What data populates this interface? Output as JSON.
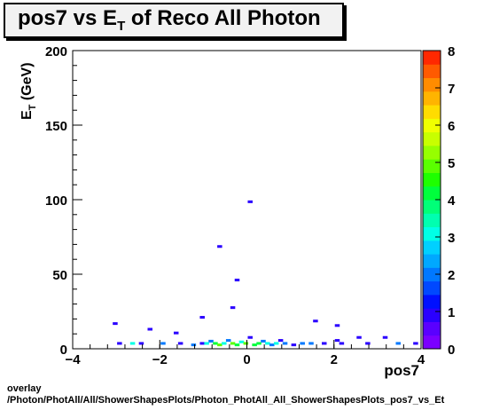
{
  "chart_data": {
    "type": "heatmap",
    "title": "pos7 vs E",
    "title_subscript": "T",
    "title_suffix": " of Reco All Photon",
    "xlabel": "pos7",
    "ylabel": "E",
    "ylabel_subscript": "T",
    "ylabel_suffix": " (GeV)",
    "xlim": [
      -4,
      4
    ],
    "ylim": [
      0,
      200
    ],
    "x_ticks": [
      "−4",
      "−2",
      "0",
      "2",
      "4"
    ],
    "y_ticks": [
      "0",
      "50",
      "100",
      "150",
      "200"
    ],
    "z_range": [
      0,
      8
    ],
    "z_ticks": [
      "0",
      "1",
      "2",
      "3",
      "4",
      "5",
      "6",
      "7",
      "8"
    ],
    "palette": [
      "#7b00ff",
      "#5a00ff",
      "#2a00ff",
      "#0010ff",
      "#0048ff",
      "#0078ff",
      "#00a8ff",
      "#00d0ff",
      "#00ffe6",
      "#00ffb0",
      "#00ff78",
      "#00ff3c",
      "#1eff00",
      "#5aff00",
      "#96ff00",
      "#c8ff00",
      "#f0ff00",
      "#ffdc00",
      "#ffb400",
      "#ff8c00",
      "#ff5a00",
      "#ff2800"
    ],
    "cells": [
      {
        "x": -3.0,
        "y": 15.8,
        "z": 1
      },
      {
        "x": -2.9,
        "y": 2.5,
        "z": 1
      },
      {
        "x": -2.2,
        "y": 12.0,
        "z": 1
      },
      {
        "x": -2.6,
        "y": 2.5,
        "z": 3
      },
      {
        "x": -2.4,
        "y": 2.5,
        "z": 1
      },
      {
        "x": -1.9,
        "y": 2.5,
        "z": 2
      },
      {
        "x": -1.6,
        "y": 9.5,
        "z": 1
      },
      {
        "x": -1.5,
        "y": 2.5,
        "z": 1
      },
      {
        "x": -1.2,
        "y": 1.5,
        "z": 2
      },
      {
        "x": -1.0,
        "y": 2.5,
        "z": 1
      },
      {
        "x": -1.0,
        "y": 20.0,
        "z": 1
      },
      {
        "x": -0.9,
        "y": 2.5,
        "z": 3
      },
      {
        "x": -0.8,
        "y": 4.0,
        "z": 2
      },
      {
        "x": -0.7,
        "y": 2.5,
        "z": 4
      },
      {
        "x": -0.6,
        "y": 1.5,
        "z": 5
      },
      {
        "x": -0.6,
        "y": 67.5,
        "z": 1
      },
      {
        "x": -0.5,
        "y": 2.5,
        "z": 3
      },
      {
        "x": -0.4,
        "y": 4.5,
        "z": 2
      },
      {
        "x": -0.3,
        "y": 2.5,
        "z": 5
      },
      {
        "x": -0.3,
        "y": 26.5,
        "z": 1
      },
      {
        "x": -0.2,
        "y": 45.0,
        "z": 1
      },
      {
        "x": -0.2,
        "y": 1.5,
        "z": 4
      },
      {
        "x": -0.1,
        "y": 3.5,
        "z": 3
      },
      {
        "x": 0.0,
        "y": 2.5,
        "z": 5
      },
      {
        "x": 0.1,
        "y": 97.5,
        "z": 1
      },
      {
        "x": 0.1,
        "y": 6.5,
        "z": 1
      },
      {
        "x": 0.2,
        "y": 1.5,
        "z": 4
      },
      {
        "x": 0.3,
        "y": 2.5,
        "z": 4
      },
      {
        "x": 0.4,
        "y": 4.0,
        "z": 2
      },
      {
        "x": 0.5,
        "y": 2.5,
        "z": 3
      },
      {
        "x": 0.6,
        "y": 1.5,
        "z": 2
      },
      {
        "x": 0.7,
        "y": 2.5,
        "z": 3
      },
      {
        "x": 0.8,
        "y": 4.5,
        "z": 1
      },
      {
        "x": 0.9,
        "y": 2.5,
        "z": 2
      },
      {
        "x": 1.1,
        "y": 1.5,
        "z": 1
      },
      {
        "x": 1.3,
        "y": 2.5,
        "z": 2
      },
      {
        "x": 1.5,
        "y": 2.5,
        "z": 2
      },
      {
        "x": 1.6,
        "y": 17.5,
        "z": 1
      },
      {
        "x": 1.8,
        "y": 2.5,
        "z": 1
      },
      {
        "x": 2.1,
        "y": 14.5,
        "z": 1
      },
      {
        "x": 2.1,
        "y": 4.5,
        "z": 1
      },
      {
        "x": 2.2,
        "y": 2.5,
        "z": 1
      },
      {
        "x": 2.6,
        "y": 6.5,
        "z": 1
      },
      {
        "x": 2.8,
        "y": 2.5,
        "z": 1
      },
      {
        "x": 3.2,
        "y": 6.5,
        "z": 1
      },
      {
        "x": 3.5,
        "y": 2.5,
        "z": 2
      },
      {
        "x": 3.9,
        "y": 2.5,
        "z": 1
      }
    ]
  },
  "footer": {
    "line1": "overlay",
    "line2": "/Photon/PhotAll/All/ShowerShapesPlots/Photon_PhotAll_All_ShowerShapesPlots_pos7_vs_Et"
  }
}
